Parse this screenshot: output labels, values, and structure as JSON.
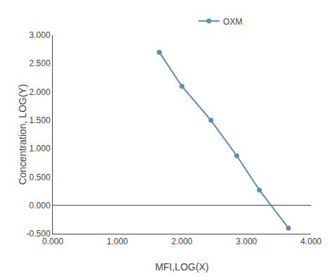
{
  "chart_data": {
    "type": "line",
    "xlabel": "MFI,LOG(X)",
    "ylabel": "Concentration, LOG(Y)",
    "x": [
      1.65,
      2.0,
      2.45,
      2.85,
      3.2,
      3.65
    ],
    "series": [
      {
        "name": "OXM",
        "color": "#5B8DB8",
        "marker": "circle",
        "line_style": "solid",
        "values": [
          2.7,
          2.1,
          1.5,
          0.875,
          0.27,
          -0.4
        ]
      }
    ],
    "xlim": [
      0.0,
      4.0
    ],
    "ylim": [
      -0.5,
      3.0
    ],
    "xticks": [
      {
        "value": 0.0,
        "label": "0.000"
      },
      {
        "value": 1.0,
        "label": "1.000"
      },
      {
        "value": 2.0,
        "label": "2.000"
      },
      {
        "value": 3.0,
        "label": "3.000"
      },
      {
        "value": 4.0,
        "label": "4.000"
      }
    ],
    "yticks": [
      {
        "value": -0.5,
        "label": "-0.500"
      },
      {
        "value": 0.0,
        "label": "0.000"
      },
      {
        "value": 0.5,
        "label": "0.500"
      },
      {
        "value": 1.0,
        "label": "1.000"
      },
      {
        "value": 1.5,
        "label": "1.500"
      },
      {
        "value": 2.0,
        "label": "2.000"
      },
      {
        "value": 2.5,
        "label": "2.500"
      },
      {
        "value": 3.0,
        "label": "3.000"
      }
    ],
    "grid": false,
    "legend": "top"
  }
}
